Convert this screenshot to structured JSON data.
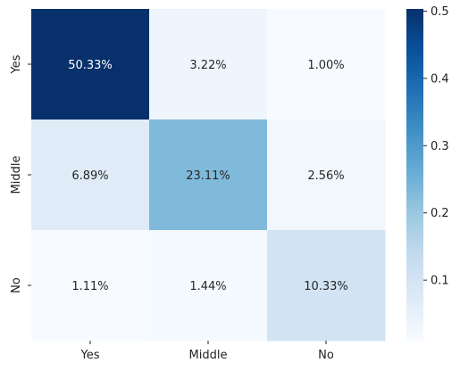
{
  "chart_data": {
    "type": "heatmap",
    "title": "",
    "xlabel": "",
    "ylabel": "",
    "x_categories": [
      "Yes",
      "Middle",
      "No"
    ],
    "y_categories": [
      "Yes",
      "Middle",
      "No"
    ],
    "values": [
      [
        0.5033,
        0.0322,
        0.01
      ],
      [
        0.0689,
        0.2311,
        0.0256
      ],
      [
        0.0111,
        0.0144,
        0.1033
      ]
    ],
    "annotations": [
      [
        "50.33%",
        "3.22%",
        "1.00%"
      ],
      [
        "6.89%",
        "23.11%",
        "2.56%"
      ],
      [
        "1.11%",
        "1.44%",
        "10.33%"
      ]
    ],
    "colorbar": {
      "min": 0.01,
      "max": 0.5033,
      "ticks": [
        0.1,
        0.2,
        0.3,
        0.4,
        0.5
      ],
      "tick_labels": [
        "0.1",
        "0.2",
        "0.3",
        "0.4",
        "0.5"
      ]
    },
    "colormap": "Blues",
    "colors": {
      "blues": [
        "#f7fbff",
        "#deebf7",
        "#c6dbef",
        "#9ecae1",
        "#6baed6",
        "#4292c6",
        "#2171b5",
        "#08519c",
        "#08306b"
      ],
      "dark_text": "#262626",
      "light_text": "#ffffff"
    },
    "grid": false,
    "legend": "colorbar-right"
  }
}
